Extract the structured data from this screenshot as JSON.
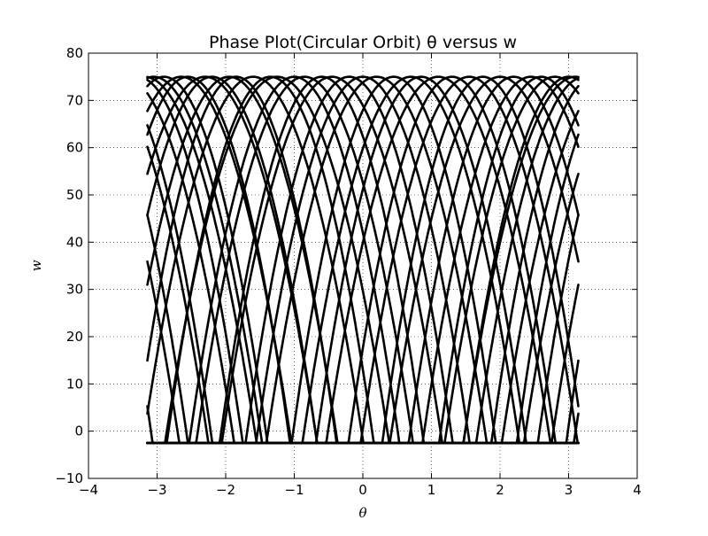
{
  "chart_data": {
    "type": "line",
    "title": "Phase Plot(Circular Orbit) θ versus w",
    "xlabel": "θ",
    "ylabel": "w",
    "xlim": [
      -4,
      4
    ],
    "ylim": [
      -10,
      80
    ],
    "xticks": [
      -4,
      -3,
      -2,
      -1,
      0,
      1,
      2,
      3,
      4
    ],
    "yticks": [
      -10,
      0,
      10,
      20,
      30,
      40,
      50,
      60,
      70,
      80
    ],
    "xtick_labels": [
      "−4",
      "−3",
      "−2",
      "−1",
      "0",
      "1",
      "2",
      "3",
      "4"
    ],
    "ytick_labels": [
      "−10",
      "0",
      "10",
      "20",
      "30",
      "40",
      "50",
      "60",
      "70",
      "80"
    ],
    "grid": true,
    "legend": "none",
    "line_color": "#000000",
    "x_domain": [
      -3.1416,
      3.1416
    ],
    "curve_model": "w = 75 - k*(theta - theta0)^2, wrapped to [-pi, pi]",
    "series": [
      {
        "theta0": -3.05,
        "k": 31
      },
      {
        "theta0": -2.9,
        "k": 34
      },
      {
        "theta0": -2.65,
        "k": 30
      },
      {
        "theta0": -2.55,
        "k": 35
      },
      {
        "theta0": -2.3,
        "k": 29
      },
      {
        "theta0": -2.2,
        "k": 33
      },
      {
        "theta0": -1.95,
        "k": 31
      },
      {
        "theta0": -1.85,
        "k": 36
      },
      {
        "theta0": -1.6,
        "k": 30
      },
      {
        "theta0": -1.35,
        "k": 34
      },
      {
        "theta0": -1.25,
        "k": 29
      },
      {
        "theta0": -1.0,
        "k": 33
      },
      {
        "theta0": -0.85,
        "k": 31
      },
      {
        "theta0": -0.6,
        "k": 35
      },
      {
        "theta0": -0.45,
        "k": 30
      },
      {
        "theta0": -0.2,
        "k": 34
      },
      {
        "theta0": 0.0,
        "k": 32
      },
      {
        "theta0": 0.2,
        "k": 30
      },
      {
        "theta0": 0.45,
        "k": 35
      },
      {
        "theta0": 0.7,
        "k": 31
      },
      {
        "theta0": 0.85,
        "k": 33
      },
      {
        "theta0": 1.1,
        "k": 29
      },
      {
        "theta0": 1.3,
        "k": 34
      },
      {
        "theta0": 1.55,
        "k": 31
      },
      {
        "theta0": 1.75,
        "k": 36
      },
      {
        "theta0": 2.0,
        "k": 30
      },
      {
        "theta0": 2.2,
        "k": 33
      },
      {
        "theta0": 2.45,
        "k": 31
      },
      {
        "theta0": 2.6,
        "k": 35
      },
      {
        "theta0": 2.8,
        "k": 30
      },
      {
        "theta0": 3.0,
        "k": 33
      },
      {
        "theta0": 3.1,
        "k": 29
      }
    ]
  }
}
